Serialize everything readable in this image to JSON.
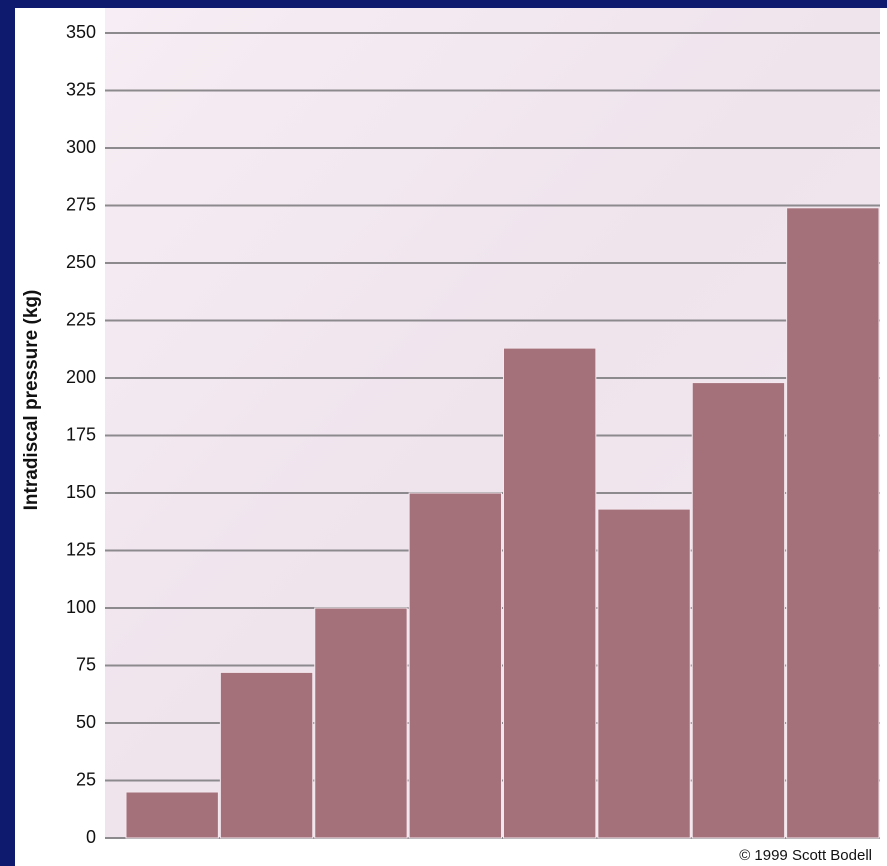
{
  "chart_data": {
    "type": "bar",
    "y_label": "Intradiscal pressure (kg)",
    "categories": [
      null,
      null,
      null,
      null,
      null,
      null,
      null,
      null
    ],
    "values": [
      20,
      72,
      100,
      150,
      213,
      143,
      198,
      274
    ],
    "color": "#a4707a",
    "ylim": [
      0,
      360
    ],
    "yticks": [
      0,
      25,
      50,
      75,
      100,
      125,
      150,
      175,
      200,
      225,
      250,
      275,
      300,
      325,
      350
    ],
    "grid": true,
    "credit": "© 1999 Scott Bodell"
  }
}
